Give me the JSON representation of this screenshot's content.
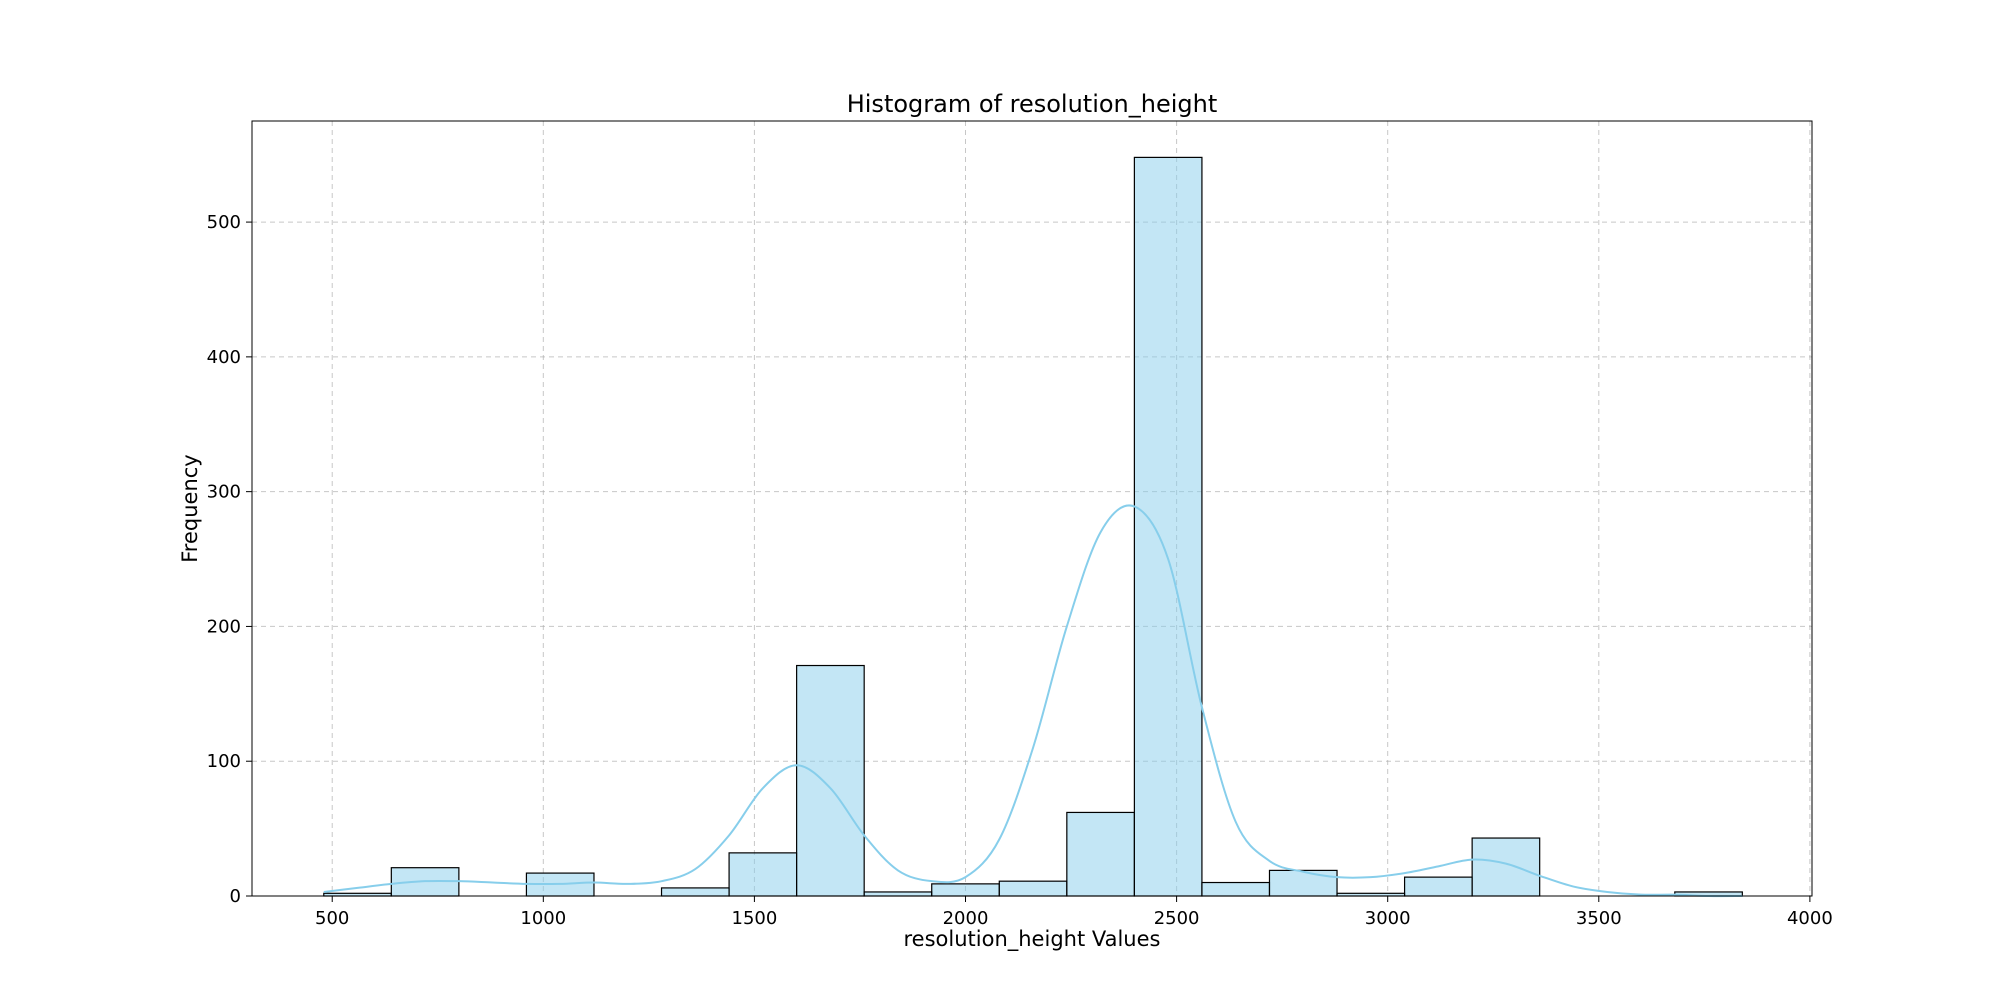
{
  "chart_data": {
    "type": "bar",
    "title": "Histogram of resolution_height",
    "xlabel": "resolution_height Values",
    "ylabel": "Frequency",
    "xlim": [
      310,
      4005
    ],
    "ylim": [
      0,
      575
    ],
    "x_ticks": [
      500,
      1000,
      1500,
      2000,
      2500,
      3000,
      3500,
      4000
    ],
    "y_ticks": [
      0,
      100,
      200,
      300,
      400,
      500
    ],
    "grid": true,
    "bar_color": "#87ceeb",
    "bar_edge_color": "#000000",
    "kde_color": "#87ceeb",
    "bins": [
      {
        "x0": 480,
        "x1": 640,
        "count": 2
      },
      {
        "x0": 640,
        "x1": 800,
        "count": 21
      },
      {
        "x0": 800,
        "x1": 960,
        "count": 0
      },
      {
        "x0": 960,
        "x1": 1120,
        "count": 17
      },
      {
        "x0": 1120,
        "x1": 1280,
        "count": 0
      },
      {
        "x0": 1280,
        "x1": 1440,
        "count": 6
      },
      {
        "x0": 1440,
        "x1": 1600,
        "count": 32
      },
      {
        "x0": 1600,
        "x1": 1760,
        "count": 171
      },
      {
        "x0": 1760,
        "x1": 1920,
        "count": 3
      },
      {
        "x0": 1920,
        "x1": 2080,
        "count": 9
      },
      {
        "x0": 2080,
        "x1": 2240,
        "count": 11
      },
      {
        "x0": 2240,
        "x1": 2400,
        "count": 62
      },
      {
        "x0": 2400,
        "x1": 2560,
        "count": 548
      },
      {
        "x0": 2560,
        "x1": 2720,
        "count": 10
      },
      {
        "x0": 2720,
        "x1": 2880,
        "count": 19
      },
      {
        "x0": 2880,
        "x1": 3040,
        "count": 2
      },
      {
        "x0": 3040,
        "x1": 3200,
        "count": 14
      },
      {
        "x0": 3200,
        "x1": 3360,
        "count": 43
      },
      {
        "x0": 3360,
        "x1": 3520,
        "count": 0
      },
      {
        "x0": 3520,
        "x1": 3680,
        "count": 0
      },
      {
        "x0": 3680,
        "x1": 3840,
        "count": 3
      }
    ],
    "kde": {
      "x": [
        480,
        560,
        640,
        720,
        800,
        880,
        960,
        1040,
        1120,
        1200,
        1280,
        1360,
        1440,
        1520,
        1600,
        1680,
        1760,
        1840,
        1920,
        2000,
        2080,
        2160,
        2240,
        2320,
        2400,
        2480,
        2560,
        2640,
        2720,
        2800,
        2880,
        2960,
        3040,
        3120,
        3200,
        3280,
        3360,
        3440,
        3520,
        3600,
        3680,
        3760,
        3840
      ],
      "y": [
        3,
        6,
        9,
        11,
        11,
        10,
        9,
        9,
        10,
        9,
        11,
        20,
        45,
        80,
        97,
        80,
        45,
        19,
        11,
        14,
        42,
        110,
        200,
        270,
        289,
        250,
        140,
        55,
        26,
        18,
        14,
        14,
        17,
        22,
        27,
        24,
        15,
        7,
        3,
        1,
        1,
        0,
        0
      ]
    }
  }
}
